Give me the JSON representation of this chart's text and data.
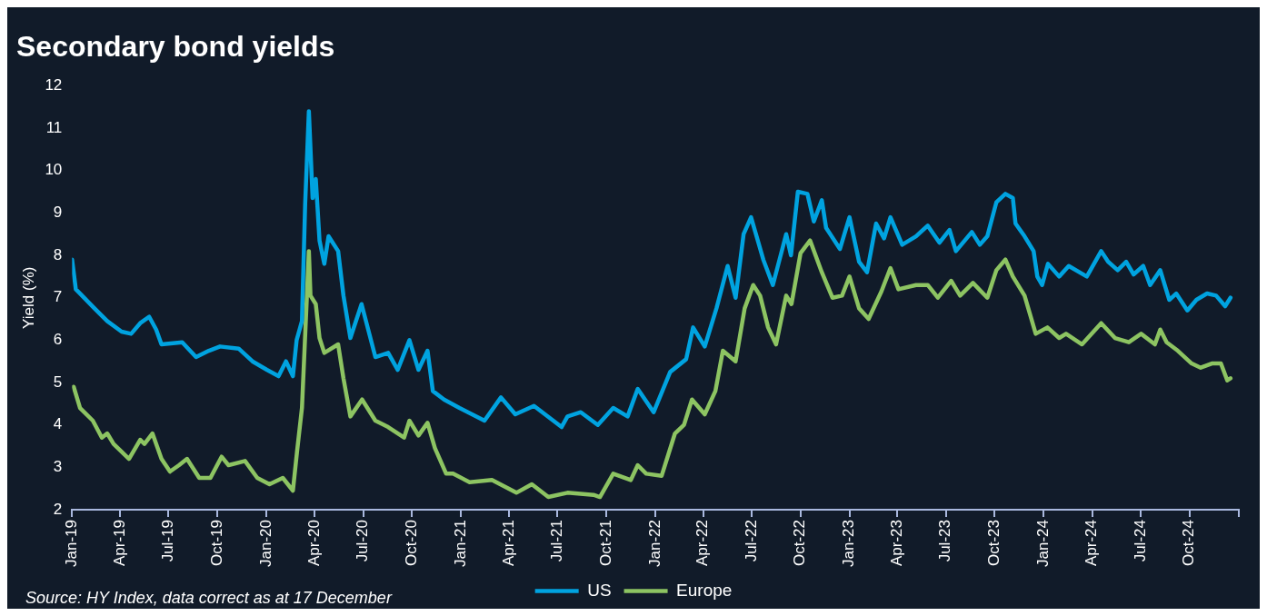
{
  "chart_data": {
    "type": "line",
    "title": "Secondary bond yields",
    "ylabel": "Yield (%)",
    "annotations": [
      "Source: HY Index, data correct as at 17 December"
    ],
    "xlim": [
      "2019-01-01",
      "2025-01-01"
    ],
    "ylim": [
      2,
      12
    ],
    "yticks": [
      2,
      3,
      4,
      5,
      6,
      7,
      8,
      9,
      10,
      11,
      12
    ],
    "xticks": [
      {
        "value": "2019-01",
        "label": "Jan-19"
      },
      {
        "value": "2019-04",
        "label": "Apr-19"
      },
      {
        "value": "2019-07",
        "label": "Jul-19"
      },
      {
        "value": "2019-10",
        "label": "Oct-19"
      },
      {
        "value": "2020-01",
        "label": "Jan-20"
      },
      {
        "value": "2020-04",
        "label": "Apr-20"
      },
      {
        "value": "2020-07",
        "label": "Jul-20"
      },
      {
        "value": "2020-10",
        "label": "Oct-20"
      },
      {
        "value": "2021-01",
        "label": "Jan-21"
      },
      {
        "value": "2021-04",
        "label": "Apr-21"
      },
      {
        "value": "2021-07",
        "label": "Jul-21"
      },
      {
        "value": "2021-10",
        "label": "Oct-21"
      },
      {
        "value": "2022-01",
        "label": "Jan-22"
      },
      {
        "value": "2022-04",
        "label": "Apr-22"
      },
      {
        "value": "2022-07",
        "label": "Jul-22"
      },
      {
        "value": "2022-10",
        "label": "Oct-22"
      },
      {
        "value": "2023-01",
        "label": "Jan-23"
      },
      {
        "value": "2023-04",
        "label": "Apr-23"
      },
      {
        "value": "2023-07",
        "label": "Jul-23"
      },
      {
        "value": "2023-10",
        "label": "Oct-23"
      },
      {
        "value": "2024-01",
        "label": "Jan-24"
      },
      {
        "value": "2024-04",
        "label": "Apr-24"
      },
      {
        "value": "2024-07",
        "label": "Jul-24"
      },
      {
        "value": "2024-10",
        "label": "Oct-24"
      },
      {
        "value": "2025-01",
        "label": null
      }
    ],
    "grid": false,
    "legend": "bottom",
    "line_style": "solid",
    "series": [
      {
        "name": "US",
        "color": "#00a3e0",
        "x": [
          "2019-01-01",
          "2019-01-08",
          "2019-01-16",
          "2019-02-12",
          "2019-03-08",
          "2019-04-04",
          "2019-04-22",
          "2019-05-09",
          "2019-05-26",
          "2019-06-08",
          "2019-06-18",
          "2019-07-27",
          "2019-08-22",
          "2019-09-15",
          "2019-10-06",
          "2019-11-10",
          "2019-12-06",
          "2020-01-02",
          "2020-01-24",
          "2020-02-07",
          "2020-02-20",
          "2020-02-27",
          "2020-03-08",
          "2020-03-14",
          "2020-03-21",
          "2020-03-28",
          "2020-04-03",
          "2020-04-10",
          "2020-04-19",
          "2020-04-27",
          "2020-05-15",
          "2020-05-25",
          "2020-06-07",
          "2020-06-28",
          "2020-07-24",
          "2020-08-17",
          "2020-09-04",
          "2020-09-26",
          "2020-10-13",
          "2020-10-30",
          "2020-11-09",
          "2020-11-30",
          "2020-12-29",
          "2021-02-14",
          "2021-03-17",
          "2021-04-13",
          "2021-05-18",
          "2021-07-09",
          "2021-07-20",
          "2021-08-14",
          "2021-09-15",
          "2021-10-14",
          "2021-11-10",
          "2021-11-29",
          "2021-12-29",
          "2022-01-29",
          "2022-02-28",
          "2022-03-13",
          "2022-04-04",
          "2022-04-26",
          "2022-05-17",
          "2022-06-01",
          "2022-06-16",
          "2022-06-30",
          "2022-07-23",
          "2022-08-10",
          "2022-09-04",
          "2022-09-13",
          "2022-09-26",
          "2022-10-14",
          "2022-10-26",
          "2022-11-10",
          "2022-11-18",
          "2022-12-14",
          "2023-01-01",
          "2023-01-19",
          "2023-02-03",
          "2023-02-20",
          "2023-03-07",
          "2023-03-19",
          "2023-04-10",
          "2023-05-06",
          "2023-05-28",
          "2023-06-19",
          "2023-07-08",
          "2023-07-20",
          "2023-08-19",
          "2023-09-03",
          "2023-09-17",
          "2023-10-04",
          "2023-10-21",
          "2023-11-04",
          "2023-11-09",
          "2023-11-26",
          "2023-12-13",
          "2023-12-20",
          "2023-12-29",
          "2024-01-09",
          "2024-01-30",
          "2024-02-17",
          "2024-03-22",
          "2024-04-18",
          "2024-05-01",
          "2024-05-19",
          "2024-06-04",
          "2024-06-18",
          "2024-07-06",
          "2024-07-19",
          "2024-08-07",
          "2024-08-24",
          "2024-09-06",
          "2024-09-27",
          "2024-10-14",
          "2024-11-03",
          "2024-11-20",
          "2024-12-07",
          "2024-12-17"
        ],
        "values": [
          7.9,
          7.2,
          7.1,
          6.75,
          6.45,
          6.2,
          6.15,
          6.4,
          6.55,
          6.25,
          5.9,
          5.95,
          5.6,
          5.75,
          5.85,
          5.8,
          5.5,
          5.3,
          5.15,
          5.5,
          5.15,
          6.0,
          6.45,
          9.2,
          11.4,
          9.35,
          9.8,
          8.35,
          7.8,
          8.45,
          8.1,
          7.05,
          6.05,
          6.85,
          5.6,
          5.7,
          5.3,
          6.0,
          5.3,
          5.75,
          4.8,
          4.6,
          4.4,
          4.1,
          4.65,
          4.25,
          4.45,
          3.95,
          4.2,
          4.3,
          4.0,
          4.4,
          4.2,
          4.85,
          4.3,
          5.25,
          5.55,
          6.3,
          5.85,
          6.75,
          7.75,
          7.0,
          8.5,
          8.9,
          7.9,
          7.3,
          8.5,
          8.0,
          9.5,
          9.45,
          8.8,
          9.3,
          8.65,
          8.15,
          8.9,
          7.85,
          7.6,
          8.75,
          8.4,
          8.9,
          8.25,
          8.45,
          8.7,
          8.3,
          8.6,
          8.1,
          8.55,
          8.25,
          8.45,
          9.25,
          9.45,
          9.35,
          8.75,
          8.45,
          8.1,
          7.5,
          7.3,
          7.8,
          7.5,
          7.75,
          7.5,
          8.1,
          7.85,
          7.65,
          7.85,
          7.55,
          7.75,
          7.3,
          7.65,
          6.95,
          7.1,
          6.7,
          6.95,
          7.1,
          7.05,
          6.8,
          7.0
        ]
      },
      {
        "name": "Europe",
        "color": "#8dc462",
        "x": [
          "2019-01-04",
          "2019-01-16",
          "2019-02-09",
          "2019-02-26",
          "2019-03-08",
          "2019-03-20",
          "2019-04-18",
          "2019-05-09",
          "2019-05-17",
          "2019-06-01",
          "2019-06-18",
          "2019-07-04",
          "2019-07-21",
          "2019-08-05",
          "2019-08-28",
          "2019-09-18",
          "2019-10-09",
          "2019-10-22",
          "2019-11-22",
          "2019-12-15",
          "2020-01-07",
          "2020-02-01",
          "2020-02-20",
          "2020-02-28",
          "2020-03-08",
          "2020-03-21",
          "2020-03-24",
          "2020-04-03",
          "2020-04-10",
          "2020-04-19",
          "2020-05-15",
          "2020-05-25",
          "2020-06-07",
          "2020-06-29",
          "2020-07-24",
          "2020-08-17",
          "2020-09-16",
          "2020-09-26",
          "2020-10-13",
          "2020-10-30",
          "2020-11-13",
          "2020-12-04",
          "2020-12-17",
          "2021-01-17",
          "2021-02-28",
          "2021-04-15",
          "2021-05-14",
          "2021-06-14",
          "2021-07-20",
          "2021-09-07",
          "2021-09-19",
          "2021-10-14",
          "2021-11-16",
          "2021-11-29",
          "2021-12-15",
          "2022-01-13",
          "2022-02-07",
          "2022-02-24",
          "2022-03-11",
          "2022-04-04",
          "2022-04-24",
          "2022-05-08",
          "2022-06-01",
          "2022-06-18",
          "2022-07-04",
          "2022-07-17",
          "2022-08-01",
          "2022-08-16",
          "2022-09-04",
          "2022-09-14",
          "2022-10-01",
          "2022-10-19",
          "2022-11-10",
          "2022-11-30",
          "2022-12-18",
          "2023-01-01",
          "2023-01-19",
          "2023-02-06",
          "2023-03-02",
          "2023-03-19",
          "2023-04-03",
          "2023-05-06",
          "2023-05-28",
          "2023-06-16",
          "2023-07-11",
          "2023-07-28",
          "2023-08-21",
          "2023-09-17",
          "2023-10-04",
          "2023-10-21",
          "2023-11-04",
          "2023-11-26",
          "2023-12-17",
          "2024-01-08",
          "2024-01-30",
          "2024-02-12",
          "2024-03-13",
          "2024-04-18",
          "2024-05-14",
          "2024-06-09",
          "2024-07-02",
          "2024-07-28",
          "2024-08-07",
          "2024-08-19",
          "2024-09-09",
          "2024-10-05",
          "2024-10-22",
          "2024-11-12",
          "2024-11-29",
          "2024-12-11",
          "2024-12-17"
        ],
        "values": [
          4.9,
          4.4,
          4.1,
          3.7,
          3.8,
          3.55,
          3.2,
          3.65,
          3.55,
          3.8,
          3.2,
          2.9,
          3.05,
          3.2,
          2.75,
          2.75,
          3.25,
          3.05,
          3.15,
          2.75,
          2.6,
          2.75,
          2.45,
          3.4,
          4.4,
          8.1,
          7.05,
          6.85,
          6.05,
          5.7,
          5.9,
          5.1,
          4.2,
          4.6,
          4.1,
          3.95,
          3.7,
          4.1,
          3.75,
          4.05,
          3.45,
          2.85,
          2.85,
          2.65,
          2.7,
          2.4,
          2.6,
          2.3,
          2.4,
          2.35,
          2.3,
          2.85,
          2.7,
          3.05,
          2.85,
          2.8,
          3.8,
          4.0,
          4.6,
          4.25,
          4.8,
          5.75,
          5.5,
          6.75,
          7.3,
          7.05,
          6.3,
          5.9,
          7.05,
          6.85,
          8.05,
          8.35,
          7.6,
          7.0,
          7.05,
          7.5,
          6.75,
          6.5,
          7.15,
          7.7,
          7.2,
          7.3,
          7.3,
          7.0,
          7.4,
          7.05,
          7.35,
          7.0,
          7.65,
          7.9,
          7.5,
          7.05,
          6.15,
          6.3,
          6.05,
          6.15,
          5.9,
          6.4,
          6.05,
          5.95,
          6.15,
          5.9,
          6.25,
          5.95,
          5.75,
          5.45,
          5.35,
          5.45,
          5.45,
          5.05,
          5.1
        ]
      }
    ]
  }
}
